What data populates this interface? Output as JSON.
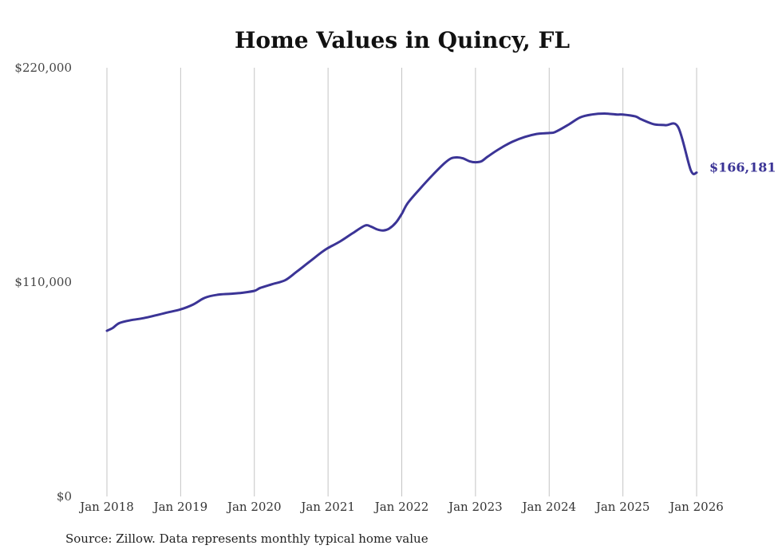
{
  "chart_data": {
    "type": "line",
    "title": "Home Values in Quincy, FL",
    "xlabel": "",
    "ylabel": "",
    "ylim": [
      0,
      220000
    ],
    "y_ticks": [
      {
        "value": 0,
        "label": "$0"
      },
      {
        "value": 110000,
        "label": "$110,000"
      },
      {
        "value": 220000,
        "label": "$220,000"
      }
    ],
    "x_ticks": [
      {
        "value": 2018,
        "label": "Jan 2018"
      },
      {
        "value": 2019,
        "label": "Jan 2019"
      },
      {
        "value": 2020,
        "label": "Jan 2020"
      },
      {
        "value": 2021,
        "label": "Jan 2021"
      },
      {
        "value": 2022,
        "label": "Jan 2022"
      },
      {
        "value": 2023,
        "label": "Jan 2023"
      },
      {
        "value": 2024,
        "label": "Jan 2024"
      },
      {
        "value": 2025,
        "label": "Jan 2025"
      },
      {
        "value": 2026,
        "label": "Jan 2026"
      }
    ],
    "xlim": [
      2018,
      2026
    ],
    "grid": "vertical",
    "series": [
      {
        "name": "Typical home value",
        "color": "#3b3496",
        "end_label": "$166,181",
        "x": [
          2018.0,
          2018.08,
          2018.17,
          2018.33,
          2018.5,
          2018.67,
          2018.83,
          2019.0,
          2019.17,
          2019.33,
          2019.5,
          2019.67,
          2019.83,
          2020.0,
          2020.08,
          2020.25,
          2020.42,
          2020.58,
          2020.75,
          2020.92,
          2021.0,
          2021.17,
          2021.33,
          2021.5,
          2021.58,
          2021.67,
          2021.75,
          2021.83,
          2021.92,
          2022.0,
          2022.08,
          2022.25,
          2022.42,
          2022.58,
          2022.67,
          2022.75,
          2022.83,
          2022.92,
          2023.0,
          2023.08,
          2023.17,
          2023.33,
          2023.5,
          2023.67,
          2023.83,
          2024.0,
          2024.08,
          2024.25,
          2024.42,
          2024.58,
          2024.75,
          2024.92,
          2025.0,
          2025.17,
          2025.25,
          2025.42,
          2025.58,
          2025.75,
          2025.92,
          2026.0
        ],
        "y": [
          85000,
          86500,
          89000,
          90500,
          91500,
          93000,
          94500,
          96000,
          98500,
          102000,
          103500,
          104000,
          104500,
          105500,
          107000,
          109000,
          111000,
          115500,
          120500,
          125500,
          127500,
          131000,
          135000,
          139000,
          138500,
          137000,
          136500,
          137500,
          140500,
          145000,
          150500,
          158000,
          165000,
          171000,
          173500,
          174000,
          173500,
          172000,
          171500,
          172000,
          174500,
          178500,
          182000,
          184500,
          186000,
          186500,
          187000,
          190500,
          194500,
          196000,
          196500,
          196000,
          196000,
          195000,
          193500,
          191000,
          190500,
          189500,
          167500,
          166181
        ]
      }
    ],
    "source": "Source: Zillow. Data represents monthly typical home value"
  }
}
